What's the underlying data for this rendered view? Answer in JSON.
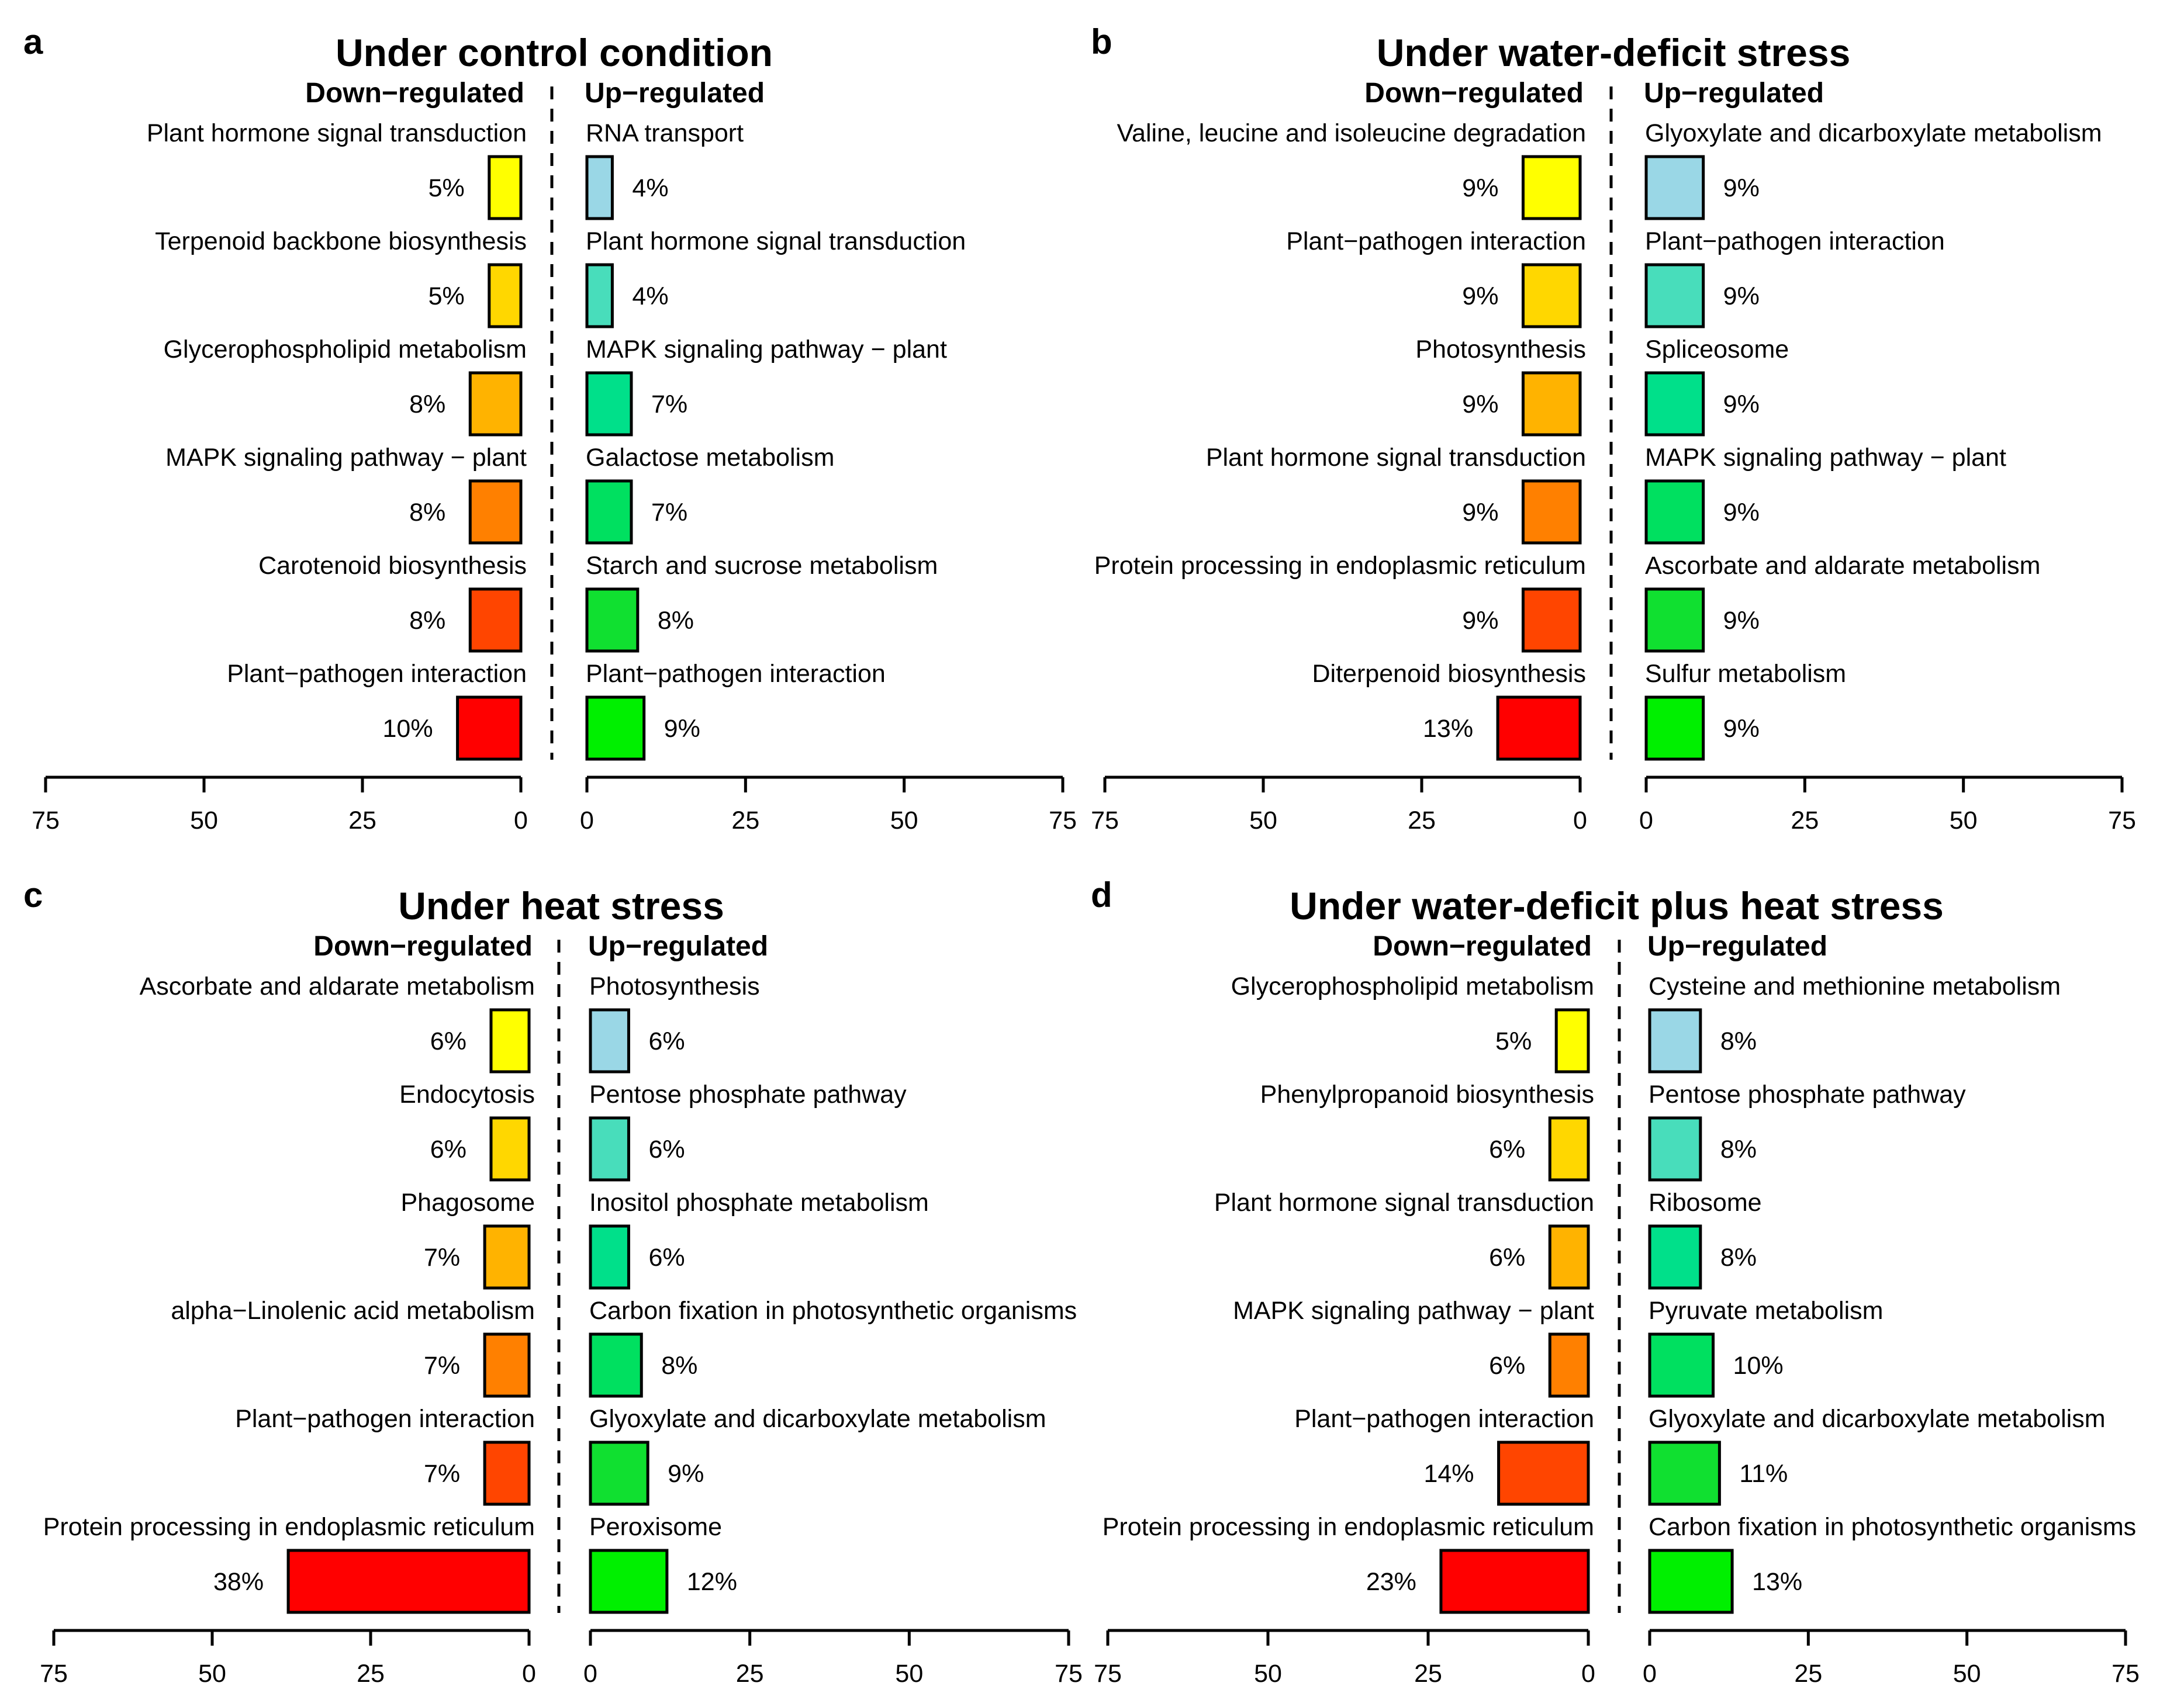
{
  "chart_data": [
    {
      "type": "bar",
      "panel": "a",
      "title": "Under control condition",
      "down_header": "Down−regulated",
      "up_header": "Up−regulated",
      "xlim": [
        0,
        75
      ],
      "xticks": [
        "0",
        "25",
        "50",
        "75"
      ],
      "down": [
        {
          "label": "Plant hormone signal transduction",
          "value": 5,
          "value_label": "5%",
          "color": "#FFFF00"
        },
        {
          "label": "Terpenoid backbone biosynthesis",
          "value": 5,
          "value_label": "5%",
          "color": "#FFD700"
        },
        {
          "label": "Glycerophospholipid metabolism",
          "value": 8,
          "value_label": "8%",
          "color": "#FFB300"
        },
        {
          "label": "MAPK signaling pathway − plant",
          "value": 8,
          "value_label": "8%",
          "color": "#FF8000"
        },
        {
          "label": "Carotenoid biosynthesis",
          "value": 8,
          "value_label": "8%",
          "color": "#FF4500"
        },
        {
          "label": "Plant−pathogen interaction",
          "value": 10,
          "value_label": "10%",
          "color": "#FF0000"
        }
      ],
      "up": [
        {
          "label": "RNA transport",
          "value": 4,
          "value_label": "4%",
          "color": "#9AD7E6"
        },
        {
          "label": "Plant hormone signal transduction",
          "value": 4,
          "value_label": "4%",
          "color": "#48DDBB"
        },
        {
          "label": "MAPK signaling pathway − plant",
          "value": 7,
          "value_label": "7%",
          "color": "#00E08A"
        },
        {
          "label": "Galactose metabolism",
          "value": 7,
          "value_label": "7%",
          "color": "#00E060"
        },
        {
          "label": "Starch and sucrose metabolism",
          "value": 8,
          "value_label": "8%",
          "color": "#10E030"
        },
        {
          "label": "Plant−pathogen interaction",
          "value": 9,
          "value_label": "9%",
          "color": "#00F000"
        }
      ]
    },
    {
      "type": "bar",
      "panel": "b",
      "title": "Under water-deficit stress",
      "down_header": "Down−regulated",
      "up_header": "Up−regulated",
      "xlim": [
        0,
        75
      ],
      "xticks": [
        "0",
        "25",
        "50",
        "75"
      ],
      "down": [
        {
          "label": "Valine, leucine and isoleucine degradation",
          "value": 9,
          "value_label": "9%",
          "color": "#FFFF00"
        },
        {
          "label": "Plant−pathogen interaction",
          "value": 9,
          "value_label": "9%",
          "color": "#FFD700"
        },
        {
          "label": "Photosynthesis",
          "value": 9,
          "value_label": "9%",
          "color": "#FFB300"
        },
        {
          "label": "Plant hormone signal transduction",
          "value": 9,
          "value_label": "9%",
          "color": "#FF8000"
        },
        {
          "label": "Protein processing in endoplasmic reticulum",
          "value": 9,
          "value_label": "9%",
          "color": "#FF4500"
        },
        {
          "label": "Diterpenoid biosynthesis",
          "value": 13,
          "value_label": "13%",
          "color": "#FF0000"
        }
      ],
      "up": [
        {
          "label": "Glyoxylate and dicarboxylate metabolism",
          "value": 9,
          "value_label": "9%",
          "color": "#9AD7E6"
        },
        {
          "label": "Plant−pathogen interaction",
          "value": 9,
          "value_label": "9%",
          "color": "#48DDBB"
        },
        {
          "label": "Spliceosome",
          "value": 9,
          "value_label": "9%",
          "color": "#00E08A"
        },
        {
          "label": "MAPK signaling pathway − plant",
          "value": 9,
          "value_label": "9%",
          "color": "#00E060"
        },
        {
          "label": "Ascorbate and aldarate metabolism",
          "value": 9,
          "value_label": "9%",
          "color": "#10E030"
        },
        {
          "label": "Sulfur metabolism",
          "value": 9,
          "value_label": "9%",
          "color": "#00F000"
        }
      ]
    },
    {
      "type": "bar",
      "panel": "c",
      "title": "Under heat stress",
      "down_header": "Down−regulated",
      "up_header": "Up−regulated",
      "xlim": [
        0,
        75
      ],
      "xticks": [
        "0",
        "25",
        "50",
        "75"
      ],
      "down": [
        {
          "label": "Ascorbate and aldarate metabolism",
          "value": 6,
          "value_label": "6%",
          "color": "#FFFF00"
        },
        {
          "label": "Endocytosis",
          "value": 6,
          "value_label": "6%",
          "color": "#FFD700"
        },
        {
          "label": "Phagosome",
          "value": 7,
          "value_label": "7%",
          "color": "#FFB300"
        },
        {
          "label": "alpha−Linolenic acid metabolism",
          "value": 7,
          "value_label": "7%",
          "color": "#FF8000"
        },
        {
          "label": "Plant−pathogen interaction",
          "value": 7,
          "value_label": "7%",
          "color": "#FF4500"
        },
        {
          "label": "Protein processing in endoplasmic reticulum",
          "value": 38,
          "value_label": "38%",
          "color": "#FF0000"
        }
      ],
      "up": [
        {
          "label": "Photosynthesis",
          "value": 6,
          "value_label": "6%",
          "color": "#9AD7E6"
        },
        {
          "label": "Pentose phosphate pathway",
          "value": 6,
          "value_label": "6%",
          "color": "#48DDBB"
        },
        {
          "label": "Inositol phosphate metabolism",
          "value": 6,
          "value_label": "6%",
          "color": "#00E08A"
        },
        {
          "label": "Carbon fixation in photosynthetic organisms",
          "value": 8,
          "value_label": "8%",
          "color": "#00E060"
        },
        {
          "label": "Glyoxylate and dicarboxylate metabolism",
          "value": 9,
          "value_label": "9%",
          "color": "#10E030"
        },
        {
          "label": "Peroxisome",
          "value": 12,
          "value_label": "12%",
          "color": "#00F000"
        }
      ]
    },
    {
      "type": "bar",
      "panel": "d",
      "title": "Under water-deficit plus heat stress",
      "down_header": "Down−regulated",
      "up_header": "Up−regulated",
      "xlim": [
        0,
        75
      ],
      "xticks": [
        "0",
        "25",
        "50",
        "75"
      ],
      "down": [
        {
          "label": "Glycerophospholipid metabolism",
          "value": 5,
          "value_label": "5%",
          "color": "#FFFF00"
        },
        {
          "label": "Phenylpropanoid biosynthesis",
          "value": 6,
          "value_label": "6%",
          "color": "#FFD700"
        },
        {
          "label": "Plant hormone signal transduction",
          "value": 6,
          "value_label": "6%",
          "color": "#FFB300"
        },
        {
          "label": "MAPK signaling pathway − plant",
          "value": 6,
          "value_label": "6%",
          "color": "#FF8000"
        },
        {
          "label": "Plant−pathogen interaction",
          "value": 14,
          "value_label": "14%",
          "color": "#FF4500"
        },
        {
          "label": "Protein processing in endoplasmic reticulum",
          "value": 23,
          "value_label": "23%",
          "color": "#FF0000"
        }
      ],
      "up": [
        {
          "label": "Cysteine and methionine metabolism",
          "value": 8,
          "value_label": "8%",
          "color": "#9AD7E6"
        },
        {
          "label": "Pentose phosphate pathway",
          "value": 8,
          "value_label": "8%",
          "color": "#48DDBB"
        },
        {
          "label": "Ribosome",
          "value": 8,
          "value_label": "8%",
          "color": "#00E08A"
        },
        {
          "label": "Pyruvate metabolism",
          "value": 10,
          "value_label": "10%",
          "color": "#00E060"
        },
        {
          "label": "Glyoxylate and dicarboxylate metabolism",
          "value": 11,
          "value_label": "11%",
          "color": "#10E030"
        },
        {
          "label": "Carbon fixation in photosynthetic organisms",
          "value": 13,
          "value_label": "13%",
          "color": "#00F000"
        }
      ]
    }
  ]
}
